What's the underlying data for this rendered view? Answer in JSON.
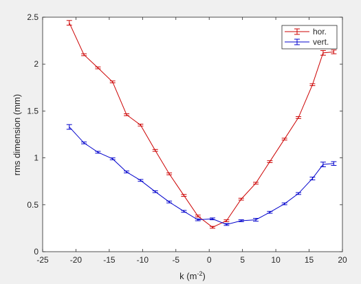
{
  "chart_data": {
    "type": "line",
    "xlabel": "k (m",
    "xlabel_sup": "-2",
    "xlabel_close": ")",
    "ylabel": "rms dimension (mm)",
    "xlim": [
      -25,
      20
    ],
    "ylim": [
      0,
      2.5
    ],
    "xticks": [
      -25,
      -20,
      -15,
      -10,
      -5,
      0,
      5,
      10,
      15,
      20
    ],
    "yticks": [
      0,
      0.5,
      1,
      1.5,
      2,
      2.5
    ],
    "xtick_labels": [
      "-25",
      "-20",
      "-15",
      "-10",
      "-5",
      "0",
      "5",
      "10",
      "15",
      "20"
    ],
    "ytick_labels": [
      "0",
      "0.5",
      "1",
      "1.5",
      "2",
      "2.5"
    ],
    "grid": false,
    "legend_position": "top-right",
    "series": [
      {
        "name": "hor.",
        "color": "#cc0000",
        "x": [
          -21,
          -18.8,
          -16.7,
          -14.5,
          -12.4,
          -10.3,
          -8.1,
          -6,
          -3.8,
          -1.7,
          0.5,
          2.6,
          4.8,
          7,
          9.1,
          11.3,
          13.4,
          15.5,
          17.1,
          18.7
        ],
        "y": [
          2.44,
          2.1,
          1.96,
          1.81,
          1.46,
          1.35,
          1.08,
          0.83,
          0.6,
          0.38,
          0.26,
          0.33,
          0.56,
          0.73,
          0.96,
          1.2,
          1.43,
          1.78,
          2.12,
          2.13
        ],
        "err": [
          0.025,
          0.01,
          0.01,
          0.01,
          0.01,
          0.01,
          0.01,
          0.01,
          0.01,
          0.01,
          0.01,
          0.01,
          0.01,
          0.01,
          0.01,
          0.01,
          0.01,
          0.01,
          0.025,
          0.02
        ]
      },
      {
        "name": "vert.",
        "color": "#0000cc",
        "x": [
          -21,
          -18.8,
          -16.7,
          -14.5,
          -12.4,
          -10.3,
          -8.1,
          -6,
          -3.8,
          -1.7,
          0.5,
          2.6,
          4.8,
          7,
          9.1,
          11.3,
          13.4,
          15.5,
          17.1,
          18.7
        ],
        "y": [
          1.33,
          1.16,
          1.06,
          0.99,
          0.85,
          0.76,
          0.64,
          0.53,
          0.43,
          0.34,
          0.35,
          0.29,
          0.33,
          0.34,
          0.42,
          0.51,
          0.62,
          0.78,
          0.93,
          0.94
        ],
        "err": [
          0.025,
          0.01,
          0.01,
          0.01,
          0.01,
          0.01,
          0.01,
          0.01,
          0.01,
          0.01,
          0.01,
          0.01,
          0.01,
          0.015,
          0.01,
          0.01,
          0.01,
          0.015,
          0.025,
          0.02
        ]
      }
    ]
  }
}
